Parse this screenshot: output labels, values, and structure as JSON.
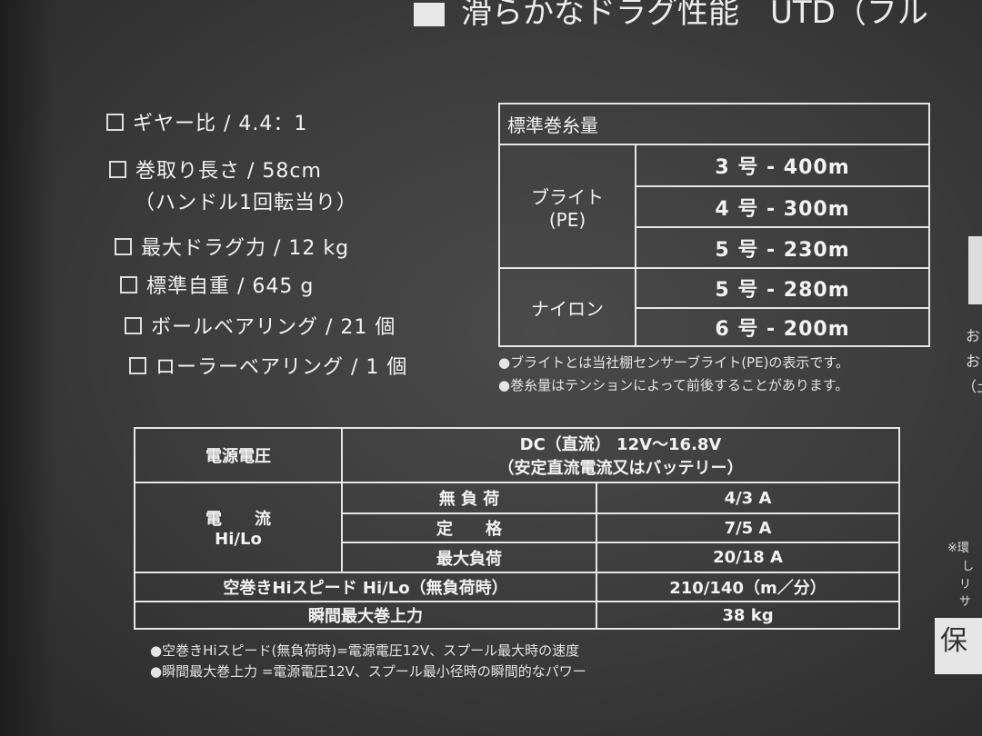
{
  "header": {
    "text": "滑らかなドラグ性能",
    "text2": "UTD（フル"
  },
  "specs": [
    "ギヤー比 / 4.4：1",
    "巻取り長さ / 58cm",
    "（ハンドル1回転当り）",
    "最大ドラグ力 / 12 kg",
    "標準自重 / 645 g",
    "ボールベアリング / 21 個",
    "ローラーベアリング / 1 個"
  ],
  "line_table": {
    "title": "標準巻糸量",
    "braid": {
      "label": "ブライト",
      "sub": "(PE)",
      "rows": [
        "3 号 - 400m",
        "4 号 - 300m",
        "5 号 - 230m"
      ]
    },
    "nylon": {
      "label": "ナイロン",
      "rows": [
        "5 号 - 280m",
        "6 号 - 200m"
      ]
    },
    "notes": [
      "●ブライトとは当社棚センサーブライト(PE)の表示です。",
      "●巻糸量はテンションによって前後することがあります。"
    ]
  },
  "power_table": {
    "voltage_label": "電源電圧",
    "voltage_value": "DC（直流） 12V〜16.8V",
    "voltage_sub": "（安定直流電流又はバッテリー）",
    "current_label": "電　　流",
    "current_sub": "Hi/Lo",
    "current_rows": [
      {
        "label": "無 負 荷",
        "value": "4/3 A"
      },
      {
        "label": "定　　格",
        "value": "7/5 A"
      },
      {
        "label": "最大負荷",
        "value": "20/18 A"
      }
    ],
    "speed_label": "空巻きHiスピード Hi/Lo（無負荷時）",
    "speed_value": "210/140（m／分）",
    "force_label": "瞬間最大巻上力",
    "force_value": "38 kg",
    "notes": [
      "●空巻きHiスピード(無負荷時)=電源電圧12V、スプール最大時の速度",
      "●瞬間最大巻上力 =電源電圧12V、スプール最小径時の瞬間的なパワー"
    ]
  },
  "right_fragments": [
    "お",
    "お",
    "（土",
    "※環",
    "し",
    "リサ",
    "保"
  ]
}
